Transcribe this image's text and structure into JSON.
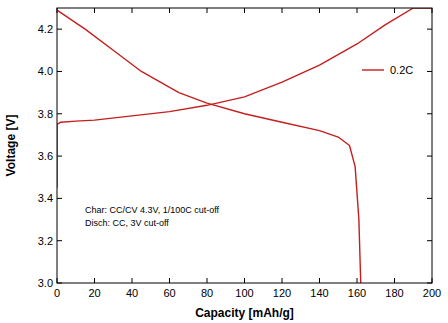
{
  "chart_data": {
    "type": "line",
    "x_label": "Capacity [mAh/g]",
    "y_label": "Voltage [V]",
    "annotations": [
      "Char: CC/CV 4.3V, 1/100C cut-off",
      "Disch: CC, 3V cut-off"
    ],
    "legend": "upper right",
    "grid": false,
    "xlim": [
      0,
      200
    ],
    "ylim": [
      3.0,
      4.3
    ],
    "xticks": [
      0,
      20,
      40,
      60,
      80,
      100,
      120,
      140,
      160,
      180,
      200
    ],
    "yticks": [
      {
        "value": 3.0,
        "label": "3.0"
      },
      3.2,
      3.4,
      3.6,
      3.8,
      {
        "value": 4.0,
        "label": "4.0"
      },
      4.2
    ],
    "series": [
      {
        "name": "0.2C",
        "color": "#c41e1e",
        "x": [
          0,
          0,
          2,
          10,
          20,
          40,
          60,
          80,
          100,
          120,
          140,
          160,
          175,
          190,
          200
        ],
        "values": [
          3.45,
          3.75,
          3.76,
          3.765,
          3.77,
          3.79,
          3.81,
          3.84,
          3.88,
          3.95,
          4.03,
          4.13,
          4.22,
          4.3,
          4.3
        ]
      },
      {
        "color": "#c41e1e",
        "x": [
          0,
          15,
          30,
          45,
          65,
          80,
          100,
          120,
          140,
          150,
          156,
          159,
          161,
          162
        ],
        "values": [
          4.29,
          4.2,
          4.1,
          4.0,
          3.9,
          3.85,
          3.8,
          3.76,
          3.72,
          3.69,
          3.65,
          3.55,
          3.3,
          3.0
        ]
      }
    ]
  }
}
